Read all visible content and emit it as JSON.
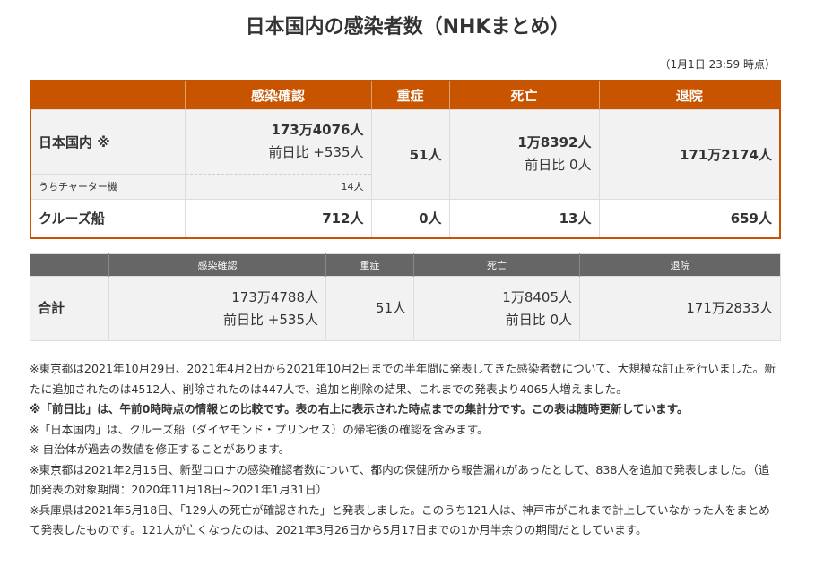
{
  "title": "日本国内の感染者数（NHKまとめ）",
  "timestamp": "（1月1日 23:59 時点）",
  "table1": {
    "headers": [
      "",
      "感染確認",
      "重症",
      "死亡",
      "退院"
    ],
    "domestic": {
      "label": "日本国内 ※",
      "confirmed": "173万4076人",
      "confirmed_diff": "前日比 +535人",
      "severe": "51人",
      "deaths": "1万8392人",
      "deaths_diff": "前日比 0人",
      "recovered": "171万2174人"
    },
    "charter": {
      "label": "うちチャーター機",
      "confirmed": "14人"
    },
    "cruise": {
      "label": "クルーズ船",
      "confirmed": "712人",
      "severe": "0人",
      "deaths": "13人",
      "recovered": "659人"
    }
  },
  "table2": {
    "headers": [
      "",
      "感染確認",
      "重症",
      "死亡",
      "退院"
    ],
    "total": {
      "label": "合計",
      "confirmed": "173万4788人",
      "confirmed_diff": "前日比 +535人",
      "severe": "51人",
      "deaths": "1万8405人",
      "deaths_diff": "前日比 0人",
      "recovered": "171万2833人"
    }
  },
  "notes": [
    "※東京都は2021年10月29日、2021年4月2日から2021年10月2日までの半年間に発表してきた感染者数について、大規模な訂正を行いました。新たに追加されたのは4512人、削除されたのは447人で、追加と削除の結果、これまでの発表より4065人増えました。",
    "※「前日比」は、午前0時時点の情報との比較です。表の右上に表示された時点までの集計分です。この表は随時更新しています。",
    "※「日本国内」は、クルーズ船（ダイヤモンド・プリンセス）の帰宅後の確認を含みます。",
    "※ 自治体が過去の数値を修正することがあります。",
    "※東京都は2021年2月15日、新型コロナの感染確認者数について、都内の保健所から報告漏れがあったとして、838人を追加で発表しました。（追加発表の対象期間：2020年11月18日~2021年1月31日）",
    "※兵庫県は2021年5月18日、「129人の死亡が確認された」と発表しました。このうち121人は、神戸市がこれまで計上していなかった人をまとめて発表したものです。121人が亡くなったのは、2021年3月26日から5月17日までの1か月半余りの期間だとしています。"
  ]
}
